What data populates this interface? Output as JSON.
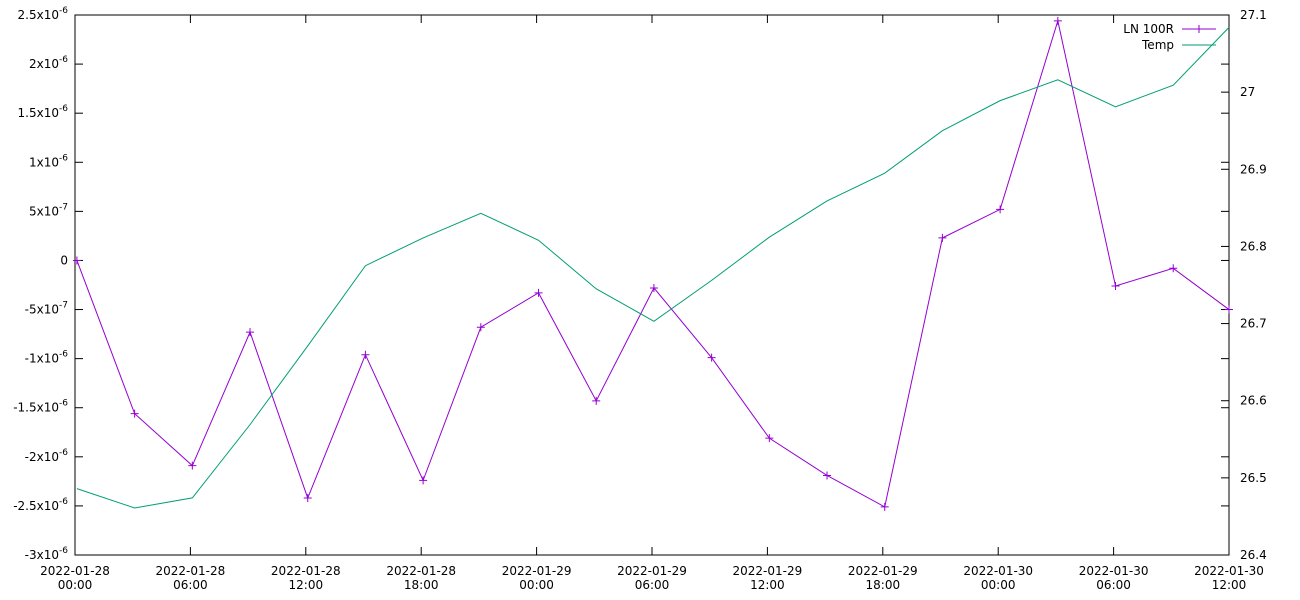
{
  "chart_data": {
    "type": "line",
    "x": [
      "2022-01-28 00:06",
      "2022-01-28 03:06",
      "2022-01-28 06:06",
      "2022-01-28 09:06",
      "2022-01-28 12:06",
      "2022-01-28 15:06",
      "2022-01-28 18:06",
      "2022-01-28 21:06",
      "2022-01-29 00:06",
      "2022-01-29 03:06",
      "2022-01-29 06:06",
      "2022-01-29 09:06",
      "2022-01-29 12:06",
      "2022-01-29 15:06",
      "2022-01-29 18:06",
      "2022-01-29 21:06",
      "2022-01-30 00:06",
      "2022-01-30 03:06",
      "2022-01-30 06:06",
      "2022-01-30 09:06",
      "2022-01-30 12:00"
    ],
    "series": [
      {
        "name": "LN 100R",
        "color": "#9400d3",
        "marker": "+",
        "values": [
          0,
          -1.56e-06,
          -2.09e-06,
          -7.3e-07,
          -2.42e-06,
          -9.6e-07,
          -2.24e-06,
          -6.8e-07,
          -3.3e-07,
          -1.43e-06,
          -2.8e-07,
          -9.9e-07,
          -1.81e-06,
          -2.19e-06,
          -2.51e-06,
          2.3e-07,
          5.2e-07,
          2.44e-06,
          -2.6e-07,
          -8e-08,
          -5e-07
        ]
      },
      {
        "name": "Temp",
        "color": "#009e73",
        "axis": "y2",
        "values": [
          26.486,
          26.461,
          26.474,
          26.569,
          26.671,
          26.775,
          26.811,
          26.843,
          26.808,
          26.745,
          26.703,
          26.756,
          26.812,
          26.859,
          26.895,
          26.95,
          26.989,
          27.016,
          26.981,
          27.009,
          27.084
        ]
      }
    ],
    "xlim": [
      "2022-01-28 00:00",
      "2022-01-30 12:00"
    ],
    "xticks": [
      "2022-01-28 00:00",
      "2022-01-28 06:00",
      "2022-01-28 12:00",
      "2022-01-28 18:00",
      "2022-01-29 00:00",
      "2022-01-29 06:00",
      "2022-01-29 12:00",
      "2022-01-29 18:00",
      "2022-01-30 00:00",
      "2022-01-30 06:00",
      "2022-01-30 12:00"
    ],
    "ylim": [
      -3e-06,
      2.5e-06
    ],
    "yticks": [
      {
        "value": 2.5e-06,
        "label": "2.5x10",
        "exponent": "-6"
      },
      {
        "value": 2e-06,
        "label": "2x10",
        "exponent": "-6"
      },
      {
        "value": 1.5e-06,
        "label": "1.5x10",
        "exponent": "-6"
      },
      {
        "value": 1e-06,
        "label": "1x10",
        "exponent": "-6"
      },
      {
        "value": 5e-07,
        "label": "5x10",
        "exponent": "-7"
      },
      0,
      {
        "value": -5e-07,
        "label": "-5x10",
        "exponent": "-7"
      },
      {
        "value": -1e-06,
        "label": "-1x10",
        "exponent": "-6"
      },
      {
        "value": -1.5e-06,
        "label": "-1.5x10",
        "exponent": "-6"
      },
      {
        "value": -2e-06,
        "label": "-2x10",
        "exponent": "-6"
      },
      {
        "value": -2.5e-06,
        "label": "-2.5x10",
        "exponent": "-6"
      },
      {
        "value": -3e-06,
        "label": "-3x10",
        "exponent": "-6"
      }
    ],
    "y2lim": [
      26.4,
      27.1
    ],
    "y2ticks": [
      26.4,
      26.5,
      26.6,
      26.7,
      26.8,
      26.9,
      27,
      27.1
    ],
    "grid": false,
    "legend": "top-right"
  }
}
